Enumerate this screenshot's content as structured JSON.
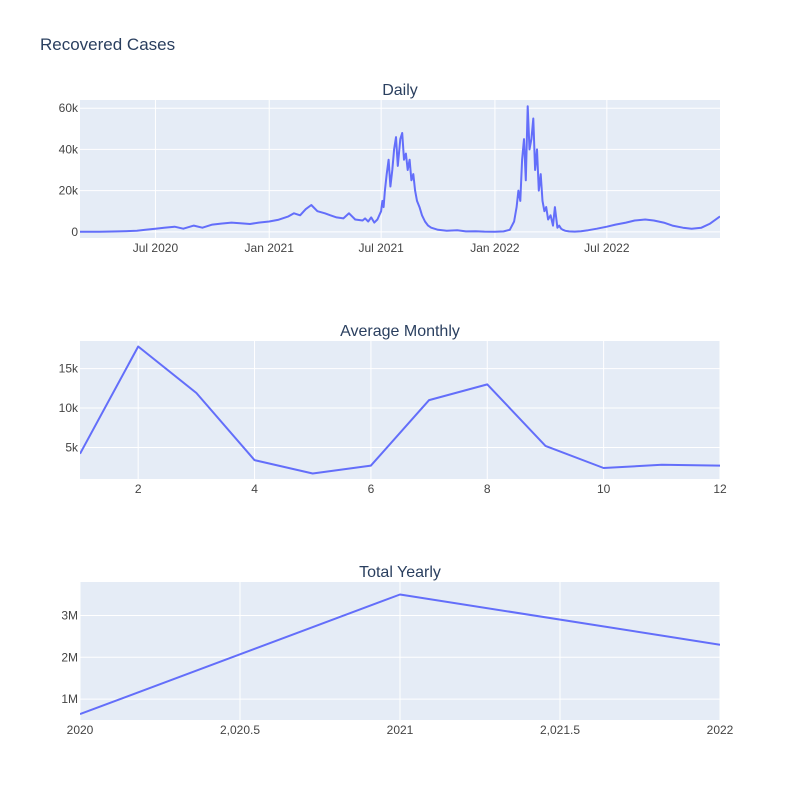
{
  "figure": {
    "title": "Recovered Cases",
    "colors": {
      "line": "#636efa",
      "plot_bg": "#e5ecf6",
      "grid": "#ffffff",
      "text": "#2a3f5f",
      "tick_text": "#444444"
    }
  },
  "chart_data": [
    {
      "type": "line",
      "title": "Daily",
      "xlabel": "",
      "ylabel": "",
      "x_type": "date",
      "xlim": [
        "2020-03-01",
        "2022-12-31"
      ],
      "ylim": [
        -3000,
        64000
      ],
      "x_ticks": [
        {
          "value": "2020-07-01",
          "label": "Jul 2020"
        },
        {
          "value": "2021-01-01",
          "label": "Jan 2021"
        },
        {
          "value": "2021-07-01",
          "label": "Jul 2021"
        },
        {
          "value": "2022-01-01",
          "label": "Jan 2022"
        },
        {
          "value": "2022-07-01",
          "label": "Jul 2022"
        }
      ],
      "y_ticks": [
        {
          "value": 0,
          "label": "0"
        },
        {
          "value": 20000,
          "label": "20k"
        },
        {
          "value": 40000,
          "label": "40k"
        },
        {
          "value": 60000,
          "label": "60k"
        }
      ],
      "grid": true,
      "series": [
        {
          "x": [
            "2020-03-01",
            "2020-04-01",
            "2020-05-01",
            "2020-06-01",
            "2020-06-15",
            "2020-07-01",
            "2020-07-15",
            "2020-08-01",
            "2020-08-15",
            "2020-09-01",
            "2020-09-15",
            "2020-10-01",
            "2020-10-15",
            "2020-11-01",
            "2020-11-15",
            "2020-12-01",
            "2020-12-15",
            "2021-01-01",
            "2021-01-15",
            "2021-02-01",
            "2021-02-10",
            "2021-02-20",
            "2021-03-01",
            "2021-03-10",
            "2021-03-20",
            "2021-04-01",
            "2021-04-10",
            "2021-04-20",
            "2021-05-01",
            "2021-05-10",
            "2021-05-20",
            "2021-06-01",
            "2021-06-05",
            "2021-06-10",
            "2021-06-15",
            "2021-06-20",
            "2021-06-25",
            "2021-07-01",
            "2021-07-03",
            "2021-07-05",
            "2021-07-07",
            "2021-07-10",
            "2021-07-13",
            "2021-07-16",
            "2021-07-19",
            "2021-07-22",
            "2021-07-25",
            "2021-07-28",
            "2021-08-01",
            "2021-08-04",
            "2021-08-07",
            "2021-08-10",
            "2021-08-13",
            "2021-08-16",
            "2021-08-19",
            "2021-08-22",
            "2021-08-25",
            "2021-08-28",
            "2021-09-01",
            "2021-09-05",
            "2021-09-10",
            "2021-09-15",
            "2021-09-20",
            "2021-10-01",
            "2021-10-15",
            "2021-11-01",
            "2021-11-15",
            "2021-12-01",
            "2021-12-15",
            "2022-01-01",
            "2022-01-15",
            "2022-01-25",
            "2022-02-01",
            "2022-02-05",
            "2022-02-08",
            "2022-02-11",
            "2022-02-14",
            "2022-02-17",
            "2022-02-20",
            "2022-02-23",
            "2022-02-26",
            "2022-03-01",
            "2022-03-04",
            "2022-03-07",
            "2022-03-10",
            "2022-03-13",
            "2022-03-16",
            "2022-03-19",
            "2022-03-22",
            "2022-03-25",
            "2022-03-28",
            "2022-04-01",
            "2022-04-05",
            "2022-04-08",
            "2022-04-12",
            "2022-04-15",
            "2022-04-18",
            "2022-04-21",
            "2022-04-25",
            "2022-05-01",
            "2022-05-10",
            "2022-05-20",
            "2022-06-01",
            "2022-06-15",
            "2022-07-01",
            "2022-07-15",
            "2022-08-01",
            "2022-08-15",
            "2022-09-01",
            "2022-09-15",
            "2022-10-01",
            "2022-10-15",
            "2022-11-01",
            "2022-11-15",
            "2022-12-01",
            "2022-12-15",
            "2022-12-31"
          ],
          "y": [
            0,
            0,
            200,
            500,
            1000,
            1500,
            2000,
            2500,
            1500,
            3000,
            2000,
            3500,
            4000,
            4500,
            4200,
            3800,
            4500,
            5000,
            5800,
            7500,
            9000,
            8000,
            11000,
            13000,
            10000,
            9000,
            8000,
            7000,
            6500,
            9000,
            6000,
            5500,
            6500,
            5000,
            7000,
            4500,
            6000,
            10000,
            15000,
            12000,
            20000,
            28000,
            35000,
            22000,
            30000,
            40000,
            46000,
            32000,
            45000,
            48000,
            35000,
            38000,
            30000,
            35000,
            25000,
            28000,
            20000,
            15000,
            12000,
            8000,
            5000,
            3000,
            2000,
            1000,
            500,
            800,
            200,
            300,
            100,
            0,
            200,
            1000,
            5000,
            12000,
            20000,
            15000,
            35000,
            45000,
            25000,
            61000,
            40000,
            45000,
            55000,
            30000,
            40000,
            20000,
            28000,
            15000,
            10000,
            12000,
            6000,
            8000,
            3000,
            12000,
            2000,
            3000,
            1500,
            1000,
            500,
            200,
            100,
            300,
            800,
            1500,
            2500,
            3500,
            4500,
            5500,
            6000,
            5500,
            4500,
            3000,
            2000,
            1500,
            2000,
            4000,
            7500
          ]
        }
      ]
    },
    {
      "type": "line",
      "title": "Average Monthly",
      "xlabel": "",
      "ylabel": "",
      "xlim": [
        1,
        12
      ],
      "ylim": [
        1000,
        18500
      ],
      "x_ticks": [
        {
          "value": 2,
          "label": "2"
        },
        {
          "value": 4,
          "label": "4"
        },
        {
          "value": 6,
          "label": "6"
        },
        {
          "value": 8,
          "label": "8"
        },
        {
          "value": 10,
          "label": "10"
        },
        {
          "value": 12,
          "label": "12"
        }
      ],
      "y_ticks": [
        {
          "value": 5000,
          "label": "5k"
        },
        {
          "value": 10000,
          "label": "10k"
        },
        {
          "value": 15000,
          "label": "15k"
        }
      ],
      "grid": true,
      "series": [
        {
          "x": [
            1,
            2,
            3,
            4,
            5,
            6,
            7,
            8,
            9,
            10,
            11,
            12
          ],
          "y": [
            4200,
            17800,
            11900,
            3400,
            1700,
            2700,
            11000,
            13000,
            5200,
            2400,
            2800,
            2700
          ]
        }
      ]
    },
    {
      "type": "line",
      "title": "Total Yearly",
      "xlabel": "",
      "ylabel": "",
      "xlim": [
        2020,
        2022
      ],
      "ylim": [
        500000,
        3800000
      ],
      "x_ticks": [
        {
          "value": 2020,
          "label": "2020"
        },
        {
          "value": 2020.5,
          "label": "2,020.5"
        },
        {
          "value": 2021,
          "label": "2021"
        },
        {
          "value": 2021.5,
          "label": "2,021.5"
        },
        {
          "value": 2022,
          "label": "2022"
        }
      ],
      "y_ticks": [
        {
          "value": 1000000,
          "label": "1M"
        },
        {
          "value": 2000000,
          "label": "2M"
        },
        {
          "value": 3000000,
          "label": "3M"
        }
      ],
      "grid": true,
      "series": [
        {
          "x": [
            2020,
            2021,
            2022
          ],
          "y": [
            640000,
            3500000,
            2300000
          ]
        }
      ]
    }
  ]
}
